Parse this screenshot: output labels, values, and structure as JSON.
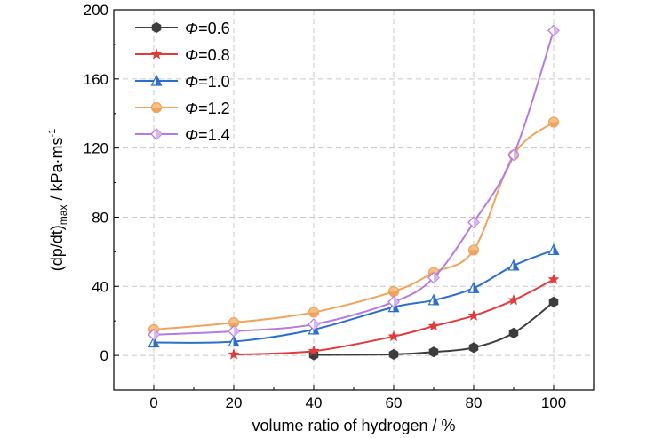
{
  "chart_data": {
    "type": "line",
    "xlabel": "volume ratio of hydrogen / %",
    "ylabel_main": "(dp/dt)",
    "ylabel_sub": "max",
    "ylabel_unit": " / kPa·ms",
    "ylabel_sup": "-1",
    "xlim": [
      -10,
      110
    ],
    "ylim": [
      -20,
      200
    ],
    "xticks": [
      0,
      20,
      40,
      60,
      80,
      100
    ],
    "yticks": [
      0,
      40,
      80,
      120,
      160,
      200
    ],
    "grid": true,
    "legend_position": "top-left",
    "legend_symbol": "Φ",
    "series": [
      {
        "name": "=0.6",
        "color": "#3d3d3d",
        "marker": "hexagon",
        "x": [
          40,
          60,
          70,
          80,
          90,
          100
        ],
        "values": [
          0.3,
          0.6,
          2,
          4.5,
          13,
          31
        ]
      },
      {
        "name": "=0.8",
        "color": "#e03c3c",
        "marker": "star",
        "x": [
          20,
          40,
          60,
          70,
          80,
          90,
          100
        ],
        "values": [
          0.5,
          2.5,
          11,
          17,
          23,
          32,
          44
        ]
      },
      {
        "name": "=1.0",
        "color": "#2b6fcb",
        "marker": "triangle",
        "x": [
          0,
          20,
          40,
          60,
          70,
          80,
          90,
          100
        ],
        "values": [
          7.5,
          8,
          15,
          28,
          32,
          39,
          52,
          61
        ]
      },
      {
        "name": "=1.2",
        "color": "#f0a35b",
        "marker": "circle",
        "x": [
          0,
          20,
          40,
          60,
          70,
          80,
          90,
          100
        ],
        "values": [
          15,
          19,
          25,
          37,
          48,
          61,
          116,
          135
        ]
      },
      {
        "name": "=1.4",
        "color": "#b57be0",
        "marker": "diamond",
        "x": [
          0,
          20,
          40,
          60,
          70,
          80,
          90,
          100
        ],
        "values": [
          12,
          14,
          18,
          31,
          45,
          77,
          116,
          188
        ]
      }
    ]
  }
}
